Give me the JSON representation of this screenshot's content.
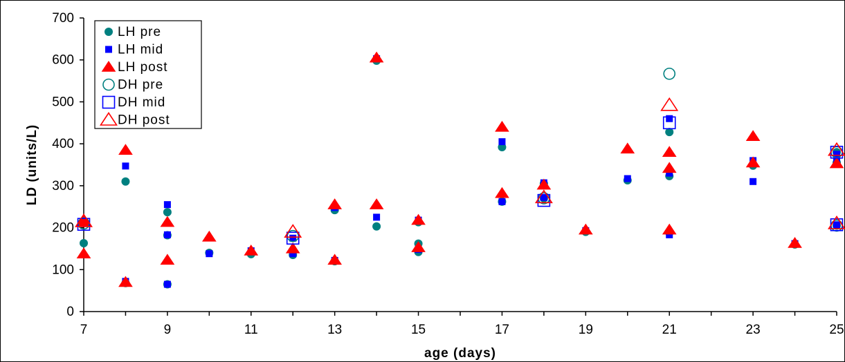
{
  "chart_data": {
    "type": "scatter",
    "title": "",
    "xlabel": "age (days)",
    "ylabel": "LD (units/L)",
    "xlim": [
      7,
      25
    ],
    "ylim": [
      0,
      700
    ],
    "xticks": [
      7,
      9,
      11,
      13,
      15,
      17,
      19,
      21,
      23,
      25
    ],
    "yticks": [
      0,
      100,
      200,
      300,
      400,
      500,
      600,
      700
    ],
    "grid": false,
    "legend_position": "top-left",
    "series": [
      {
        "name": "LH pre",
        "marker": "circle-filled",
        "color": "#008080",
        "points": [
          [
            7,
            163
          ],
          [
            8,
            310
          ],
          [
            8,
            68
          ],
          [
            9,
            237
          ],
          [
            9,
            182
          ],
          [
            9,
            65
          ],
          [
            10,
            140
          ],
          [
            11,
            137
          ],
          [
            12,
            135
          ],
          [
            13,
            242
          ],
          [
            13,
            120
          ],
          [
            14,
            598
          ],
          [
            14,
            203
          ],
          [
            15,
            213
          ],
          [
            15,
            162
          ],
          [
            15,
            142
          ],
          [
            17,
            392
          ],
          [
            17,
            262
          ],
          [
            18,
            305
          ],
          [
            18,
            270
          ],
          [
            19,
            190
          ],
          [
            20,
            313
          ],
          [
            21,
            428
          ],
          [
            21,
            323
          ],
          [
            21,
            188
          ],
          [
            23,
            348
          ],
          [
            24,
            160
          ],
          [
            25,
            380
          ],
          [
            25,
            205
          ],
          [
            25,
            355
          ]
        ]
      },
      {
        "name": "LH mid",
        "marker": "square-filled",
        "color": "#0000ff",
        "points": [
          [
            7,
            210
          ],
          [
            8,
            347
          ],
          [
            8,
            72
          ],
          [
            9,
            255
          ],
          [
            9,
            183
          ],
          [
            9,
            65
          ],
          [
            10,
            138
          ],
          [
            11,
            145
          ],
          [
            12,
            175
          ],
          [
            12,
            138
          ],
          [
            13,
            248
          ],
          [
            13,
            122
          ],
          [
            14,
            603
          ],
          [
            14,
            225
          ],
          [
            15,
            218
          ],
          [
            15,
            148
          ],
          [
            17,
            405
          ],
          [
            17,
            262
          ],
          [
            18,
            307
          ],
          [
            18,
            272
          ],
          [
            19,
            193
          ],
          [
            20,
            317
          ],
          [
            21,
            460
          ],
          [
            21,
            330
          ],
          [
            21,
            183
          ],
          [
            23,
            360
          ],
          [
            23,
            310
          ],
          [
            24,
            162
          ],
          [
            25,
            375
          ],
          [
            25,
            207
          ],
          [
            25,
            360
          ]
        ]
      },
      {
        "name": "LH post",
        "marker": "triangle-filled",
        "color": "#ff0000",
        "points": [
          [
            7,
            138
          ],
          [
            7,
            215
          ],
          [
            8,
            385
          ],
          [
            8,
            70
          ],
          [
            9,
            213
          ],
          [
            9,
            123
          ],
          [
            10,
            178
          ],
          [
            11,
            145
          ],
          [
            12,
            150
          ],
          [
            13,
            255
          ],
          [
            13,
            123
          ],
          [
            14,
            605
          ],
          [
            14,
            255
          ],
          [
            15,
            218
          ],
          [
            15,
            153
          ],
          [
            17,
            440
          ],
          [
            17,
            282
          ],
          [
            18,
            302
          ],
          [
            19,
            195
          ],
          [
            20,
            388
          ],
          [
            21,
            380
          ],
          [
            21,
            342
          ],
          [
            21,
            195
          ],
          [
            23,
            418
          ],
          [
            23,
            355
          ],
          [
            24,
            163
          ],
          [
            25,
            353
          ]
        ]
      },
      {
        "name": "DH pre",
        "marker": "circle-open",
        "color": "#008080",
        "points": [
          [
            7,
            210
          ],
          [
            12,
            180
          ],
          [
            18,
            270
          ],
          [
            21,
            567
          ],
          [
            25,
            380
          ],
          [
            25,
            205
          ]
        ]
      },
      {
        "name": "DH mid",
        "marker": "square-open",
        "color": "#0000ff",
        "points": [
          [
            7,
            208
          ],
          [
            12,
            175
          ],
          [
            18,
            265
          ],
          [
            21,
            450
          ],
          [
            25,
            380
          ],
          [
            25,
            207
          ]
        ]
      },
      {
        "name": "DH post",
        "marker": "triangle-open",
        "color": "#ff0000",
        "points": [
          [
            7,
            215
          ],
          [
            12,
            190
          ],
          [
            18,
            272
          ],
          [
            21,
            492
          ],
          [
            25,
            385
          ],
          [
            25,
            210
          ]
        ]
      }
    ]
  }
}
